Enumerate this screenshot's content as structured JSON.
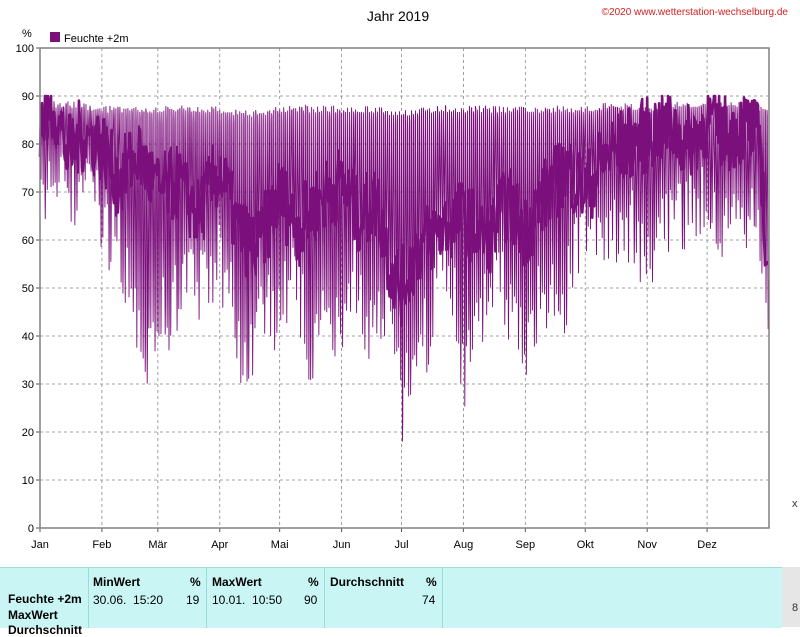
{
  "header": {
    "title": "Jahr 2019",
    "copyright": "©2020 www.wetterstation-wechselburg.de",
    "unit_label": "%"
  },
  "legend": {
    "label": "Feuchte +2m",
    "color": "#7b0f7b"
  },
  "colors": {
    "series": "#7b0f7b",
    "grid": "#888888",
    "copyright": "#d62020"
  },
  "chart_data": {
    "type": "line",
    "title": "Jahr 2019",
    "ylabel": "%",
    "ylim": [
      0,
      100
    ],
    "yticks": [
      0,
      10,
      20,
      30,
      40,
      50,
      60,
      70,
      80,
      90,
      100
    ],
    "xlim": [
      1,
      366
    ],
    "month_labels": [
      "Jan",
      "Feb",
      "Mär",
      "Apr",
      "Mai",
      "Jun",
      "Jul",
      "Aug",
      "Sep",
      "Okt",
      "Nov",
      "Dez"
    ],
    "month_start_days": [
      1,
      32,
      60,
      91,
      121,
      152,
      182,
      213,
      244,
      274,
      305,
      335
    ],
    "grid": true,
    "legend_position": "top-left",
    "series": [
      {
        "name": "Feuchte +2m",
        "x_unit": "day of year 2019",
        "daily_max_x": [
          1,
          15,
          32,
          46,
          60,
          75,
          91,
          105,
          121,
          135,
          152,
          166,
          182,
          196,
          213,
          227,
          244,
          258,
          274,
          288,
          305,
          319,
          335,
          350,
          365
        ],
        "daily_max": [
          89,
          89,
          88,
          88,
          88,
          88,
          88,
          87,
          88,
          88,
          88,
          88,
          87,
          88,
          88,
          88,
          88,
          88,
          88,
          89,
          88,
          89,
          89,
          89,
          88
        ],
        "daily_min_x": [
          1,
          5,
          10,
          20,
          27,
          32,
          40,
          48,
          55,
          60,
          66,
          75,
          85,
          90,
          98,
          102,
          112,
          121,
          128,
          135,
          144,
          152,
          158,
          166,
          172,
          176,
          180,
          182,
          185,
          190,
          196,
          203,
          208,
          213,
          220,
          227,
          235,
          240,
          244,
          250,
          255,
          262,
          268,
          274,
          282,
          290,
          298,
          305,
          312,
          320,
          328,
          335,
          342,
          350,
          358,
          363,
          365
        ],
        "daily_min": [
          62,
          70,
          75,
          62,
          68,
          60,
          58,
          40,
          35,
          45,
          42,
          48,
          50,
          55,
          40,
          28,
          45,
          42,
          50,
          35,
          42,
          40,
          50,
          38,
          42,
          38,
          28,
          19,
          30,
          35,
          40,
          55,
          45,
          26,
          42,
          50,
          45,
          40,
          33,
          45,
          48,
          40,
          55,
          58,
          62,
          55,
          60,
          52,
          58,
          62,
          65,
          68,
          60,
          58,
          65,
          55,
          36
        ],
        "smoothed_x": [
          1,
          8,
          15,
          22,
          32,
          40,
          50,
          60,
          70,
          80,
          91,
          100,
          110,
          121,
          130,
          140,
          152,
          160,
          170,
          176,
          182,
          190,
          200,
          213,
          225,
          235,
          244,
          255,
          265,
          274,
          285,
          295,
          305,
          315,
          325,
          335,
          345,
          355,
          362,
          364,
          365
        ],
        "smoothed": [
          85,
          88,
          78,
          82,
          80,
          72,
          78,
          70,
          72,
          65,
          75,
          62,
          58,
          70,
          62,
          68,
          72,
          65,
          68,
          55,
          50,
          58,
          62,
          65,
          60,
          68,
          62,
          70,
          75,
          70,
          78,
          80,
          82,
          84,
          80,
          85,
          82,
          84,
          80,
          60,
          52
        ]
      }
    ]
  },
  "stats": {
    "row_label": "Feuchte +2m",
    "row_label_2": "MaxWert",
    "row_label_3": "Durchschnitt",
    "min": {
      "header": "MinWert",
      "unit": "%",
      "datetime": "30.06.  15:20",
      "value": "19"
    },
    "max": {
      "header": "MaxWert",
      "unit": "%",
      "datetime": "10.01.  10:50",
      "value": "90"
    },
    "avg": {
      "header": "Durchschnitt",
      "unit": "%",
      "value": "74"
    }
  },
  "edge_marks": {
    "x": "x",
    "eight": "8"
  }
}
